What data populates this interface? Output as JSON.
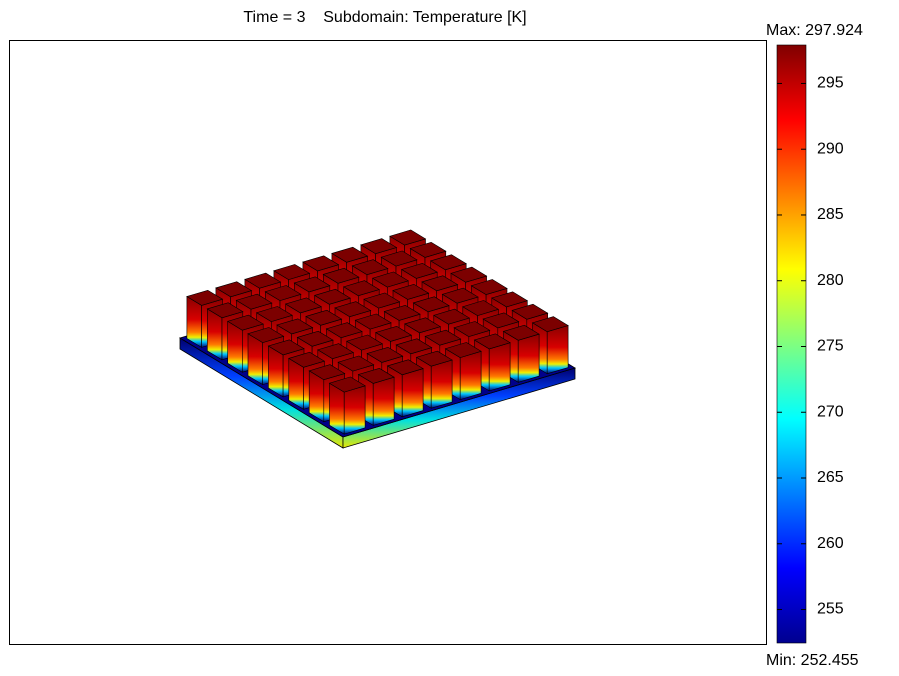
{
  "chart_data": {
    "type": "surface",
    "title": "Time = 3    Subdomain: Temperature [K]",
    "colorbar": {
      "colormap": "jet",
      "max": {
        "value": 297.924,
        "label": "Max: 297.924"
      },
      "min": {
        "value": 252.455,
        "label": "Min: 252.455"
      },
      "ticks": [
        255,
        260,
        265,
        270,
        275,
        280,
        285,
        290,
        295
      ]
    }
  }
}
